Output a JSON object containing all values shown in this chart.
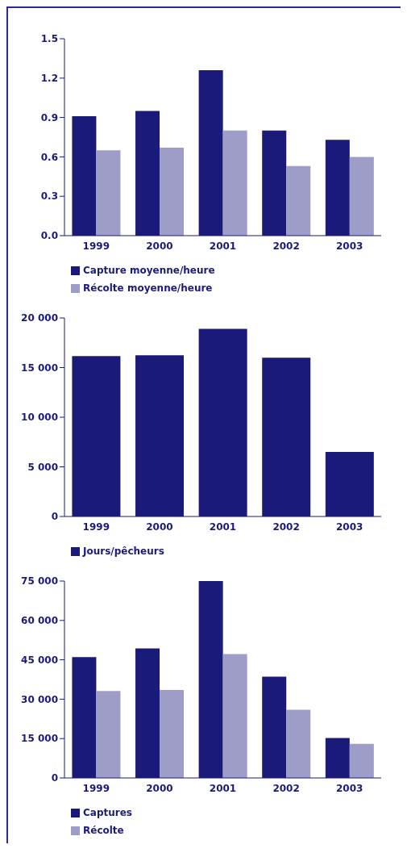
{
  "chart_data": [
    {
      "type": "bar",
      "categories": [
        "1999",
        "2000",
        "2001",
        "2002",
        "2003"
      ],
      "series": [
        {
          "name": "Capture moyenne/heure",
          "color": "#1a1a7a",
          "values": [
            0.91,
            0.95,
            1.26,
            0.8,
            0.73
          ]
        },
        {
          "name": "Récolte moyenne/heure",
          "color": "#9d9dc8",
          "values": [
            0.65,
            0.67,
            0.8,
            0.53,
            0.6
          ]
        }
      ],
      "ylim": [
        0,
        1.5
      ],
      "yticks": [
        {
          "value": 0,
          "label": "0.0"
        },
        0.3,
        0.6,
        0.9,
        1.2,
        1.5
      ],
      "grid": false,
      "legend": "bottom left"
    },
    {
      "type": "bar",
      "categories": [
        "1999",
        "2000",
        "2001",
        "2002",
        "2003"
      ],
      "series": [
        {
          "name": "Jours/pêcheurs",
          "color": "#1a1a7a",
          "values": [
            16150,
            16250,
            18900,
            16000,
            6500
          ]
        }
      ],
      "ylim": [
        0,
        20000
      ],
      "yticks": [
        0,
        {
          "value": 5000,
          "label": "5 000"
        },
        {
          "value": 10000,
          "label": "10 000"
        },
        {
          "value": 15000,
          "label": "15 000"
        },
        {
          "value": 20000,
          "label": "20 000"
        }
      ],
      "grid": false,
      "legend": "bottom left"
    },
    {
      "type": "bar",
      "categories": [
        "1999",
        "2000",
        "2001",
        "2002",
        "2003"
      ],
      "series": [
        {
          "name": "Captures",
          "color": "#1a1a7a",
          "values": [
            46000,
            49300,
            75000,
            38600,
            15200
          ]
        },
        {
          "name": "Récolte",
          "color": "#9d9dc8",
          "values": [
            33100,
            33500,
            47200,
            26000,
            13000
          ]
        }
      ],
      "ylim": [
        0,
        75000
      ],
      "yticks": [
        0,
        {
          "value": 15000,
          "label": "15 000"
        },
        {
          "value": 30000,
          "label": "30 000"
        },
        {
          "value": 45000,
          "label": "45 000"
        },
        {
          "value": 60000,
          "label": "60 000"
        },
        {
          "value": 75000,
          "label": "75 000"
        }
      ],
      "grid": false,
      "legend": "bottom left"
    }
  ]
}
